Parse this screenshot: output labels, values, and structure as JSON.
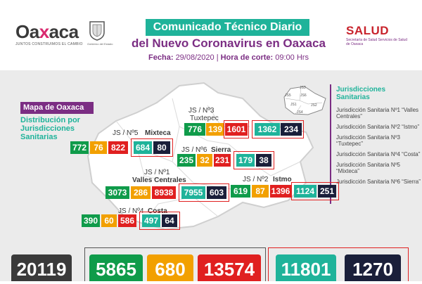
{
  "header": {
    "logo_left": "Oaxaca",
    "slogan": "JUNTOS CONSTRUIMOS EL CAMBIO",
    "gob_label": "Gobierno del Estado",
    "title_line1": "Comunicado Técnico Diario",
    "title_line2": "del Nuevo Coronavirus en Oaxaca",
    "fecha_label": "Fecha:",
    "fecha_value": "29/08/2020",
    "hora_label": "Hora de corte:",
    "hora_value": "09:00 Hrs",
    "salud": "SALUD",
    "salud_sub": "Secretaría de Salud Servicios de Salud de Oaxaca"
  },
  "map_panel": {
    "mapa_label": "Mapa de Oaxaca",
    "dist_label": "Distribución por Jurisdicciones Sanitarias"
  },
  "legend": {
    "title": "Jurisdicciones Sanitarias",
    "items": [
      "Jurisdicción Sanitaria Nº1 “Valles Centrales”",
      "Jurisdicción Sanitaria Nº2 “Istmo”",
      "Jurisdicción Sanitaria Nº3 “Tuxtepec”",
      "Jurisdicción Sanitaria Nº4 “Costa”",
      "Jurisdicción Sanitaria Nº5 “Mixteca”",
      "Jurisdicción Sanitaria Nº6 “Sierra”"
    ],
    "mini_labels": [
      "JS3",
      "JS5",
      "JS6",
      "JS1",
      "JS2",
      "JS4"
    ]
  },
  "jurisdictions": [
    {
      "id": "js3",
      "label_code": "JS / Nº3",
      "label_name": "Tuxtepec",
      "values": [
        "776",
        "139",
        "1601",
        "1362",
        "234"
      ]
    },
    {
      "id": "js5",
      "label_code": "JS / Nº5",
      "label_name": "Mixteca",
      "values": [
        "772",
        "76",
        "822",
        "684",
        "80"
      ]
    },
    {
      "id": "js6",
      "label_code": "JS / Nº6",
      "label_name": "Sierra",
      "values": [
        "235",
        "32",
        "231",
        "179",
        "38"
      ]
    },
    {
      "id": "js1",
      "label_code": "JS / Nº1",
      "label_name": "Valles Centrales",
      "values": [
        "3073",
        "286",
        "8938",
        "7955",
        "603"
      ]
    },
    {
      "id": "js2",
      "label_code": "JS / Nº2",
      "label_name": "Istmo",
      "values": [
        "619",
        "87",
        "1396",
        "1124",
        "251"
      ]
    },
    {
      "id": "js4",
      "label_code": "JS / Nº4",
      "label_name": "Costa",
      "values": [
        "390",
        "60",
        "586",
        "497",
        "64"
      ]
    }
  ],
  "totals": {
    "total": "20119",
    "green": "5865",
    "orange": "680",
    "red": "13574",
    "teal": "11801",
    "dark": "1270"
  },
  "colors": {
    "green": "#0f9b4a",
    "orange": "#f2a000",
    "red": "#e02020",
    "teal": "#1fb39a",
    "dark": "#1a1f3a",
    "purple": "#7b2d83"
  }
}
